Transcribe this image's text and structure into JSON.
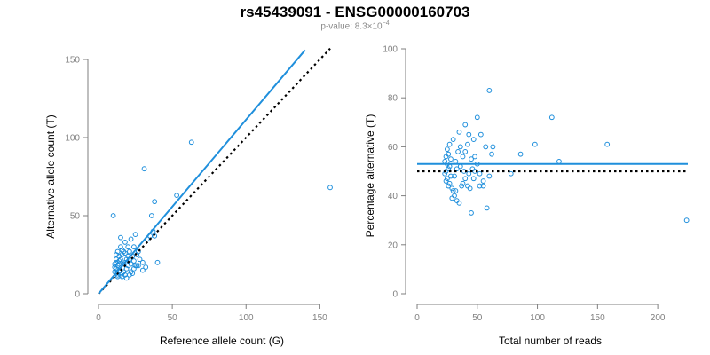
{
  "header": {
    "title": "rs45439091 - ENSG00000160703",
    "pvalue_prefix": "p-value: 8.3×10",
    "pvalue_exponent": "−4"
  },
  "colors": {
    "points": "#1f8fdc",
    "fit_line": "#1f8fdc",
    "reference_line": "#000000",
    "axis": "#7f7f7f",
    "tick_label": "#7f7f7f",
    "axis_label": "#000000"
  },
  "chart_data": [
    {
      "type": "scatter",
      "xlabel": "Reference allele count (G)",
      "ylabel": "Alternative allele count (T)",
      "xlim": [
        0,
        160
      ],
      "ylim": [
        0,
        150
      ],
      "xticks": [
        0,
        50,
        100,
        150
      ],
      "yticks": [
        0,
        50,
        100,
        150
      ],
      "grid": false,
      "points": [
        [
          10,
          50
        ],
        [
          13,
          12
        ],
        [
          12,
          13
        ],
        [
          11,
          14
        ],
        [
          14,
          15
        ],
        [
          12,
          16
        ],
        [
          11,
          17
        ],
        [
          13,
          18
        ],
        [
          14,
          19
        ],
        [
          12,
          20
        ],
        [
          15,
          12
        ],
        [
          16,
          13
        ],
        [
          13,
          11
        ],
        [
          17,
          14
        ],
        [
          12,
          22
        ],
        [
          14,
          24
        ],
        [
          16,
          25
        ],
        [
          13,
          27
        ],
        [
          15,
          22
        ],
        [
          18,
          20
        ],
        [
          19,
          16
        ],
        [
          20,
          18
        ],
        [
          21,
          22
        ],
        [
          22,
          19
        ],
        [
          23,
          24
        ],
        [
          17,
          27
        ],
        [
          20,
          30
        ],
        [
          18,
          33
        ],
        [
          15,
          36
        ],
        [
          22,
          35
        ],
        [
          25,
          38
        ],
        [
          24,
          30
        ],
        [
          26,
          25
        ],
        [
          27,
          27
        ],
        [
          25,
          18
        ],
        [
          28,
          22
        ],
        [
          30,
          20
        ],
        [
          32,
          17
        ],
        [
          33,
          35
        ],
        [
          35,
          37
        ],
        [
          37,
          40
        ],
        [
          38,
          37
        ],
        [
          36,
          50
        ],
        [
          38,
          59
        ],
        [
          40,
          20
        ],
        [
          31,
          80
        ],
        [
          53,
          63
        ],
        [
          63,
          97
        ],
        [
          157,
          68
        ],
        [
          30,
          15
        ],
        [
          26,
          18
        ],
        [
          24,
          16
        ],
        [
          22,
          14
        ],
        [
          18,
          12
        ],
        [
          16,
          11
        ],
        [
          19,
          10
        ],
        [
          21,
          12
        ],
        [
          23,
          13
        ],
        [
          20,
          24
        ],
        [
          18,
          26
        ],
        [
          16,
          28
        ],
        [
          14,
          21
        ],
        [
          11,
          19
        ],
        [
          12,
          25
        ],
        [
          15,
          30
        ],
        [
          17,
          19
        ],
        [
          19,
          22
        ],
        [
          21,
          27
        ],
        [
          24,
          21
        ],
        [
          27,
          18
        ]
      ],
      "fit_line": {
        "x": [
          0,
          140
        ],
        "y": [
          0,
          156
        ]
      },
      "reference_line": {
        "x": [
          0,
          157
        ],
        "y": [
          0,
          157
        ]
      }
    },
    {
      "type": "scatter",
      "xlabel": "Total number of reads",
      "ylabel": "Percentage alternative (T)",
      "xlim": [
        0,
        225
      ],
      "ylim": [
        0,
        100
      ],
      "xticks": [
        0,
        50,
        100,
        150,
        200
      ],
      "yticks": [
        0,
        20,
        40,
        60,
        80,
        100
      ],
      "grid": false,
      "points": [
        [
          60,
          83
        ],
        [
          50,
          72
        ],
        [
          112,
          72
        ],
        [
          40,
          69
        ],
        [
          43,
          65
        ],
        [
          47,
          63
        ],
        [
          35,
          66
        ],
        [
          30,
          63
        ],
        [
          27,
          61
        ],
        [
          25,
          59
        ],
        [
          26,
          57
        ],
        [
          24,
          56
        ],
        [
          28,
          55
        ],
        [
          23,
          54
        ],
        [
          25,
          53
        ],
        [
          27,
          52
        ],
        [
          26,
          51
        ],
        [
          24,
          50
        ],
        [
          23,
          49
        ],
        [
          28,
          48
        ],
        [
          25,
          47
        ],
        [
          24,
          46
        ],
        [
          27,
          45
        ],
        [
          26,
          44
        ],
        [
          29,
          43
        ],
        [
          30,
          42
        ],
        [
          31,
          40
        ],
        [
          33,
          38
        ],
        [
          35,
          37
        ],
        [
          29,
          39
        ],
        [
          32,
          42
        ],
        [
          38,
          45
        ],
        [
          40,
          47
        ],
        [
          42,
          44
        ],
        [
          45,
          33
        ],
        [
          44,
          43
        ],
        [
          48,
          50
        ],
        [
          52,
          44
        ],
        [
          55,
          46
        ],
        [
          60,
          48
        ],
        [
          58,
          35
        ],
        [
          62,
          57
        ],
        [
          63,
          60
        ],
        [
          53,
          65
        ],
        [
          57,
          60
        ],
        [
          40,
          58
        ],
        [
          45,
          55
        ],
        [
          50,
          53
        ],
        [
          36,
          60
        ],
        [
          38,
          56
        ],
        [
          34,
          58
        ],
        [
          32,
          54
        ],
        [
          36,
          52
        ],
        [
          39,
          50
        ],
        [
          43,
          49
        ],
        [
          46,
          51
        ],
        [
          48,
          56
        ],
        [
          52,
          49
        ],
        [
          86,
          57
        ],
        [
          98,
          61
        ],
        [
          118,
          54
        ],
        [
          158,
          61
        ],
        [
          224,
          30
        ],
        [
          78,
          49
        ],
        [
          42,
          61
        ],
        [
          47,
          47
        ],
        [
          55,
          44
        ],
        [
          31,
          48
        ],
        [
          33,
          51
        ],
        [
          37,
          44
        ]
      ],
      "fit_line": {
        "x": [
          0,
          225
        ],
        "y": [
          53,
          53
        ]
      },
      "reference_line": {
        "x": [
          0,
          225
        ],
        "y": [
          50,
          50
        ]
      }
    }
  ]
}
